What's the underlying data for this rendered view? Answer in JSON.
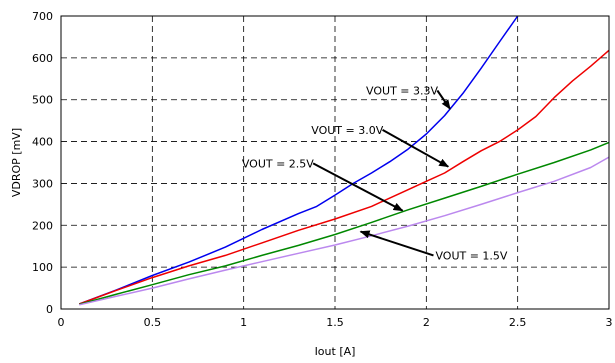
{
  "chart_data": {
    "type": "line",
    "xlabel": "Iout [A]",
    "ylabel": "VDROP [mV]",
    "xlim": [
      0,
      3
    ],
    "ylim": [
      0,
      700
    ],
    "x_ticks": [
      "0",
      "0.5",
      "1",
      "1.5",
      "2",
      "2.5",
      "3"
    ],
    "y_ticks": [
      "0",
      "100",
      "200",
      "300",
      "400",
      "500",
      "600",
      "700"
    ],
    "grid": true,
    "series": [
      {
        "name": "VOUT = 3.3V",
        "color": "#0000ee",
        "points": [
          [
            0.1,
            12
          ],
          [
            0.3,
            45
          ],
          [
            0.5,
            80
          ],
          [
            0.7,
            112
          ],
          [
            0.9,
            148
          ],
          [
            1.1,
            190
          ],
          [
            1.3,
            228
          ],
          [
            1.4,
            245
          ],
          [
            1.5,
            272
          ],
          [
            1.6,
            300
          ],
          [
            1.7,
            325
          ],
          [
            1.8,
            352
          ],
          [
            1.9,
            382
          ],
          [
            2.0,
            418
          ],
          [
            2.1,
            462
          ],
          [
            2.2,
            515
          ],
          [
            2.3,
            575
          ],
          [
            2.4,
            638
          ],
          [
            2.5,
            700
          ]
        ]
      },
      {
        "name": "VOUT = 3.0V",
        "color": "#ee0000",
        "points": [
          [
            0.1,
            12
          ],
          [
            0.3,
            44
          ],
          [
            0.5,
            75
          ],
          [
            0.7,
            103
          ],
          [
            0.9,
            128
          ],
          [
            1.1,
            158
          ],
          [
            1.3,
            188
          ],
          [
            1.5,
            215
          ],
          [
            1.7,
            245
          ],
          [
            1.9,
            285
          ],
          [
            2.0,
            305
          ],
          [
            2.1,
            325
          ],
          [
            2.2,
            352
          ],
          [
            2.3,
            378
          ],
          [
            2.4,
            400
          ],
          [
            2.5,
            428
          ],
          [
            2.6,
            460
          ],
          [
            2.7,
            505
          ],
          [
            2.8,
            545
          ],
          [
            2.9,
            580
          ],
          [
            3.0,
            618
          ]
        ]
      },
      {
        "name": "VOUT = 2.5V",
        "color": "#008800",
        "points": [
          [
            0.1,
            11
          ],
          [
            0.3,
            35
          ],
          [
            0.5,
            58
          ],
          [
            0.7,
            82
          ],
          [
            0.9,
            103
          ],
          [
            1.1,
            128
          ],
          [
            1.3,
            152
          ],
          [
            1.5,
            178
          ],
          [
            1.7,
            207
          ],
          [
            1.9,
            237
          ],
          [
            2.1,
            265
          ],
          [
            2.3,
            293
          ],
          [
            2.5,
            322
          ],
          [
            2.7,
            350
          ],
          [
            2.9,
            380
          ],
          [
            3.0,
            398
          ]
        ]
      },
      {
        "name": "VOUT = 1.5V",
        "color": "#bb88ee",
        "points": [
          [
            0.1,
            10
          ],
          [
            0.3,
            30
          ],
          [
            0.5,
            50
          ],
          [
            0.7,
            72
          ],
          [
            0.9,
            93
          ],
          [
            1.1,
            113
          ],
          [
            1.3,
            133
          ],
          [
            1.5,
            153
          ],
          [
            1.7,
            175
          ],
          [
            1.9,
            198
          ],
          [
            2.1,
            223
          ],
          [
            2.3,
            250
          ],
          [
            2.5,
            278
          ],
          [
            2.7,
            305
          ],
          [
            2.9,
            338
          ],
          [
            3.0,
            363
          ]
        ]
      }
    ],
    "annotations": [
      {
        "text": "VOUT = 3.3V",
        "label_at": [
          1.67,
          522
        ],
        "arrow_to": [
          2.13,
          478
        ]
      },
      {
        "text": "VOUT = 3.0V",
        "label_at": [
          1.37,
          428
        ],
        "arrow_to": [
          2.12,
          340
        ]
      },
      {
        "text": "VOUT = 2.5V",
        "label_at": [
          0.99,
          348
        ],
        "arrow_to": [
          1.87,
          235
        ]
      },
      {
        "text": "VOUT = 1.5V",
        "label_at": [
          2.05,
          128
        ],
        "arrow_to": [
          1.64,
          185
        ]
      }
    ]
  }
}
